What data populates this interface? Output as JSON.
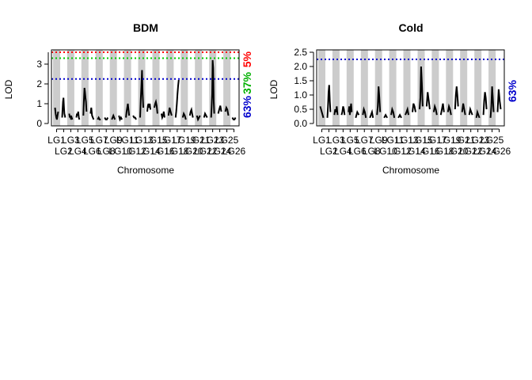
{
  "chart_data": [
    {
      "type": "line",
      "title": "BDM",
      "xlabel": "Chromosome",
      "ylabel": "LOD",
      "ylim": [
        0,
        3.6
      ],
      "yticks": [
        "0",
        "1",
        "2",
        "3"
      ],
      "chromosomes": [
        "LG1",
        "LG2",
        "LG3",
        "LG4",
        "LG5",
        "LG6",
        "LG7",
        "LG8",
        "LG9",
        "LG10",
        "LG11",
        "LG12",
        "LG13",
        "LG14",
        "LG15",
        "LG16",
        "LG17",
        "LG18",
        "LG19",
        "LG20",
        "LG21",
        "LG22",
        "LG23",
        "LG24",
        "LG25",
        "LG26"
      ],
      "lod": [
        [
          0.8,
          0.5,
          0.3,
          0.2,
          0.4,
          0.6
        ],
        [
          0.3,
          0.7,
          1.1,
          1.3,
          0.9,
          0.5,
          0.4,
          0.3
        ],
        [
          0.5,
          0.3,
          0.4,
          0.2,
          0.3,
          0.2
        ],
        [
          0.3,
          0.5,
          0.4,
          0.6,
          0.3,
          0.2
        ],
        [
          0.4,
          1.2,
          1.8,
          1.6,
          1.3,
          1.1,
          0.6
        ],
        [
          0.5,
          0.8,
          0.4,
          0.3,
          0.2
        ],
        [
          0.2,
          0.3,
          0.2,
          0.2
        ],
        [
          0.3,
          0.2,
          0.2,
          0.3
        ],
        [
          0.2,
          0.3,
          0.4,
          0.3,
          0.2
        ],
        [
          0.4,
          0.2,
          0.3,
          0.2
        ],
        [
          0.3,
          0.6,
          0.8,
          1.0,
          0.7,
          0.4
        ],
        [
          0.4,
          0.3,
          0.3,
          0.2
        ],
        [
          0.3,
          1.2,
          1.9,
          2.7,
          1.5,
          0.8
        ],
        [
          0.6,
          0.9,
          1.0,
          0.8,
          1.0,
          0.7
        ],
        [
          0.8,
          1.0,
          1.1,
          0.9,
          0.5
        ],
        [
          0.5,
          0.3,
          0.4,
          0.6,
          0.3
        ],
        [
          0.4,
          0.8,
          0.6,
          0.4
        ],
        [
          0.3,
          0.6,
          1.0,
          1.5,
          1.9,
          2.2
        ],
        [
          0.3,
          0.5,
          0.4,
          0.2
        ],
        [
          0.4,
          0.6,
          0.7,
          0.5,
          0.3
        ],
        [
          0.4,
          0.2,
          0.3,
          0.4
        ],
        [
          0.3,
          0.5,
          0.4,
          0.3
        ],
        [
          0.3,
          0.8,
          1.5,
          3.2,
          2.8,
          1.1,
          0.5
        ],
        [
          0.5,
          0.7,
          0.9,
          0.6
        ],
        [
          0.6,
          0.8,
          0.7,
          0.4
        ],
        [
          0.3,
          0.2,
          0.2,
          0.3
        ]
      ],
      "thresholds": [
        {
          "value": 3.6,
          "color": "#ff0000"
        },
        {
          "value": 3.3,
          "color": "#00cc00"
        },
        {
          "value": 2.25,
          "color": "#0000cc"
        }
      ],
      "threshold_labels": [
        {
          "text": "5%",
          "color": "#ff0000"
        },
        {
          "text": "37%",
          "color": "#00b000"
        },
        {
          "text": "63%",
          "color": "#0000cc"
        }
      ]
    },
    {
      "type": "line",
      "title": "Cold",
      "xlabel": "Chromosome",
      "ylabel": "LOD",
      "ylim": [
        0,
        2.5
      ],
      "yticks": [
        "0.0",
        "0.5",
        "1.0",
        "1.5",
        "2.0",
        "2.5"
      ],
      "chromosomes": [
        "LG1",
        "LG2",
        "LG3",
        "LG4",
        "LG5",
        "LG6",
        "LG7",
        "LG8",
        "LG9",
        "LG10",
        "LG11",
        "LG12",
        "LG13",
        "LG14",
        "LG15",
        "LG16",
        "LG17",
        "LG18",
        "LG19",
        "LG20",
        "LG21",
        "LG22",
        "LG23",
        "LG24",
        "LG25",
        "LG26"
      ],
      "lod": [
        [
          0.6,
          0.5,
          0.4,
          0.3,
          0.2
        ],
        [
          0.2,
          0.6,
          1.1,
          1.35,
          0.8,
          0.4
        ],
        [
          0.3,
          0.5,
          0.4,
          0.6,
          0.3
        ],
        [
          0.3,
          0.4,
          0.6,
          0.5,
          0.3
        ],
        [
          0.4,
          0.6,
          0.3,
          0.5,
          0.7,
          0.4
        ],
        [
          0.2,
          0.4,
          0.3
        ],
        [
          0.3,
          0.5,
          0.4,
          0.2
        ],
        [
          0.2,
          0.3,
          0.4,
          0.2
        ],
        [
          0.3,
          0.6,
          1.3,
          0.9,
          0.4
        ],
        [
          0.2,
          0.3,
          0.2
        ],
        [
          0.3,
          0.5,
          0.4,
          0.2
        ],
        [
          0.2,
          0.3,
          0.2
        ],
        [
          0.3,
          0.4,
          0.5,
          0.3
        ],
        [
          0.4,
          0.7,
          0.6,
          0.4
        ],
        [
          0.5,
          0.9,
          2.0,
          1.4,
          0.6
        ],
        [
          0.6,
          1.1,
          0.8,
          0.5
        ],
        [
          0.4,
          0.6,
          0.5,
          0.3
        ],
        [
          0.3,
          0.5,
          0.7,
          0.4
        ],
        [
          0.4,
          0.6,
          0.5,
          0.3
        ],
        [
          0.5,
          1.0,
          1.3,
          1.0,
          0.6
        ],
        [
          0.4,
          0.7,
          0.5,
          0.3
        ],
        [
          0.3,
          0.5,
          0.4,
          0.3
        ],
        [
          0.2,
          0.4,
          0.3,
          0.2
        ],
        [
          0.3,
          0.8,
          1.1,
          0.9,
          0.5
        ],
        [
          0.2,
          0.6,
          1.3,
          0.9,
          0.4
        ],
        [
          0.4,
          1.2,
          0.8,
          0.5
        ]
      ],
      "thresholds": [
        {
          "value": 2.25,
          "color": "#0000cc"
        }
      ],
      "threshold_labels": [
        {
          "text": "63%",
          "color": "#0000cc"
        }
      ]
    }
  ]
}
